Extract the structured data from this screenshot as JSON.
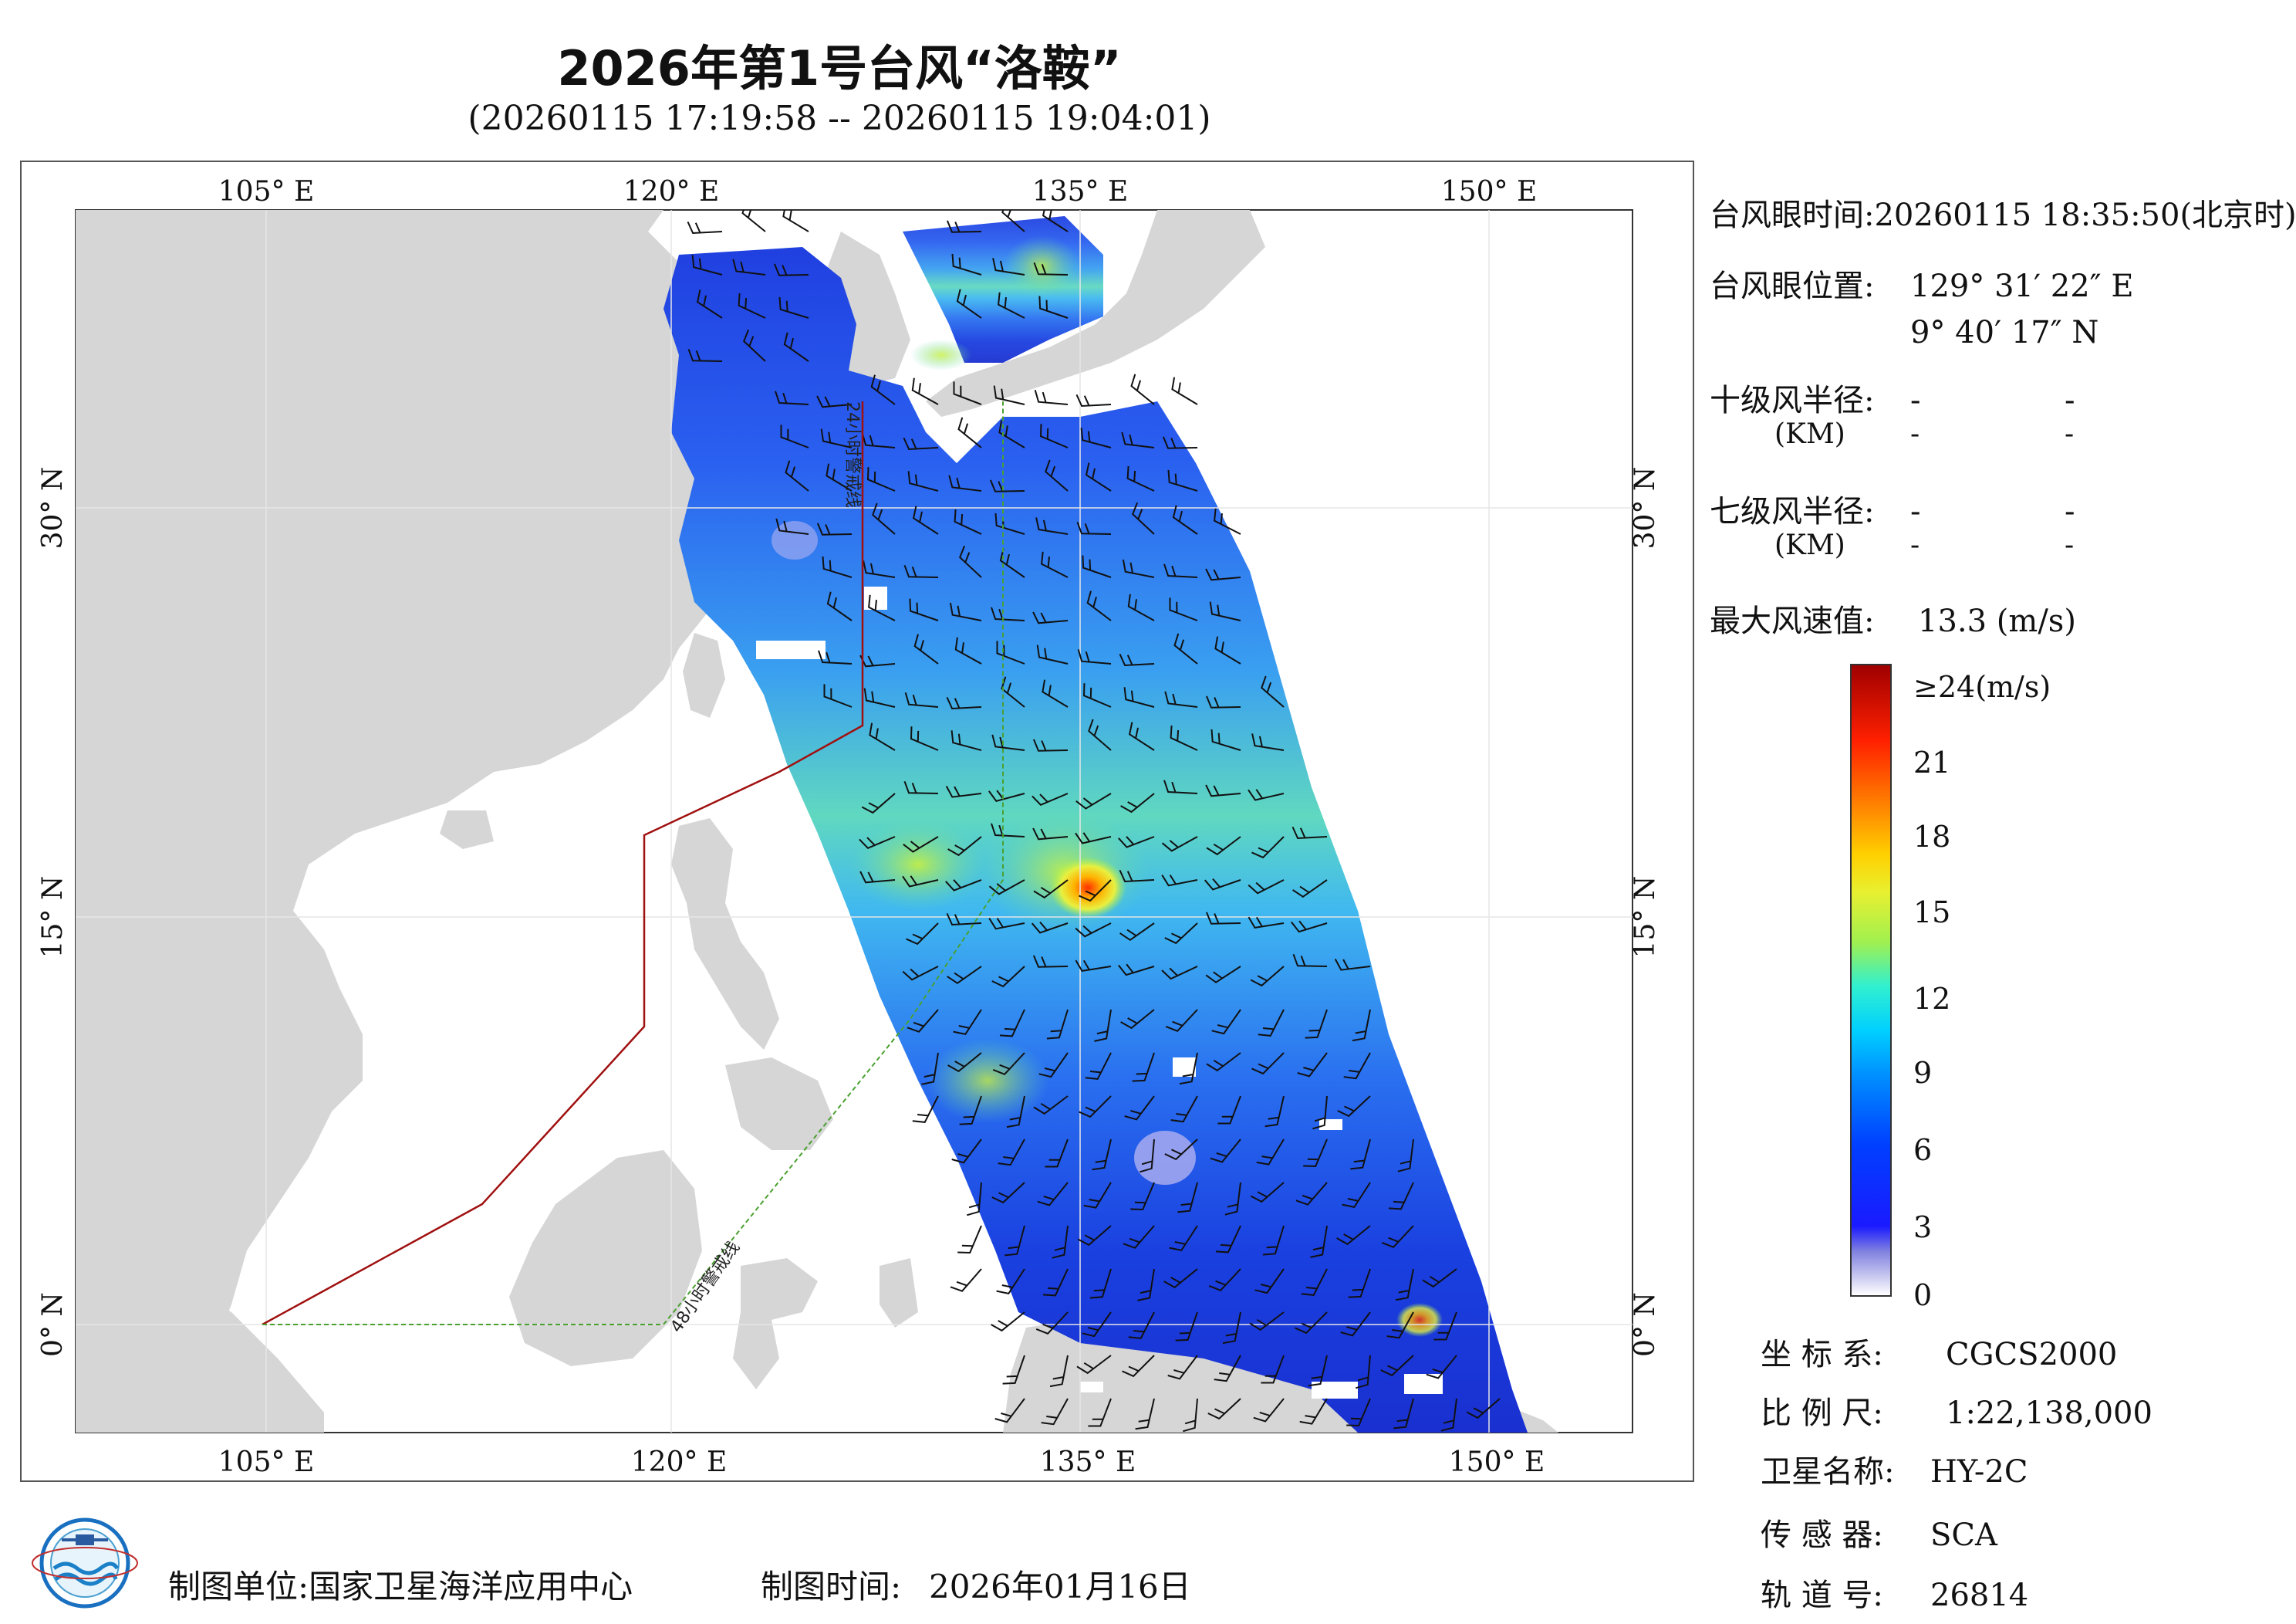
{
  "header": {
    "title": "2026年第1号台风“洛鞍”",
    "subtitle": "(20260115 17:19:58 -- 20260115 19:04:01)"
  },
  "map": {
    "lon_ticks_top": [
      "105° E",
      "120° E",
      "135° E",
      "150° E"
    ],
    "lon_ticks_bottom": [
      "105° E",
      "120° E",
      "135° E",
      "150° E"
    ],
    "lat_ticks_left": [
      "30° N",
      "15° N",
      "0° N"
    ],
    "lat_ticks_right": [
      "30° N",
      "15° N",
      "0° N"
    ],
    "warning_line_24h": "24小时警戒线",
    "warning_line_48h": "48小时警戒线",
    "colors": {
      "land": "#d6d6d6",
      "sea": "#ffffff",
      "line_24h": "#a01010",
      "line_48h": "#4aa030"
    }
  },
  "info": {
    "eye_time_label": "台风眼时间:",
    "eye_time_value": "20260115 18:35:50(北京时)",
    "eye_pos_label": "台风眼位置:",
    "eye_lon": "129° 31′ 22″ E",
    "eye_lat": "9° 40′ 17″ N",
    "r10_label": "十级风半径:",
    "r7_label": "七级风半径:",
    "unit_km": "(KM)",
    "dash": "-",
    "max_wind_label": "最大风速值:",
    "max_wind_value": "13.3  (m/s)"
  },
  "colorbar": {
    "labels": [
      "≥24(m/s)",
      "21",
      "18",
      "15",
      "12",
      "9",
      "6",
      "3",
      "0"
    ]
  },
  "meta": {
    "crs_label": "坐 标 系:",
    "crs_value": "CGCS2000",
    "scale_label": "比 例 尺:",
    "scale_value": "1:22,138,000",
    "sat_label": "卫星名称:",
    "sat_value": "HY-2C",
    "sensor_label": "传 感 器:",
    "sensor_value": "SCA",
    "orbit_label": "轨 道 号:",
    "orbit_value": "26814"
  },
  "footer": {
    "org_label": "制图单位:",
    "org_value": "国家卫星海洋应用中心",
    "date_label": "制图时间:",
    "date_value": "2026年01月16日"
  },
  "logo_icon": "noaa-style-ocean-globe-icon"
}
